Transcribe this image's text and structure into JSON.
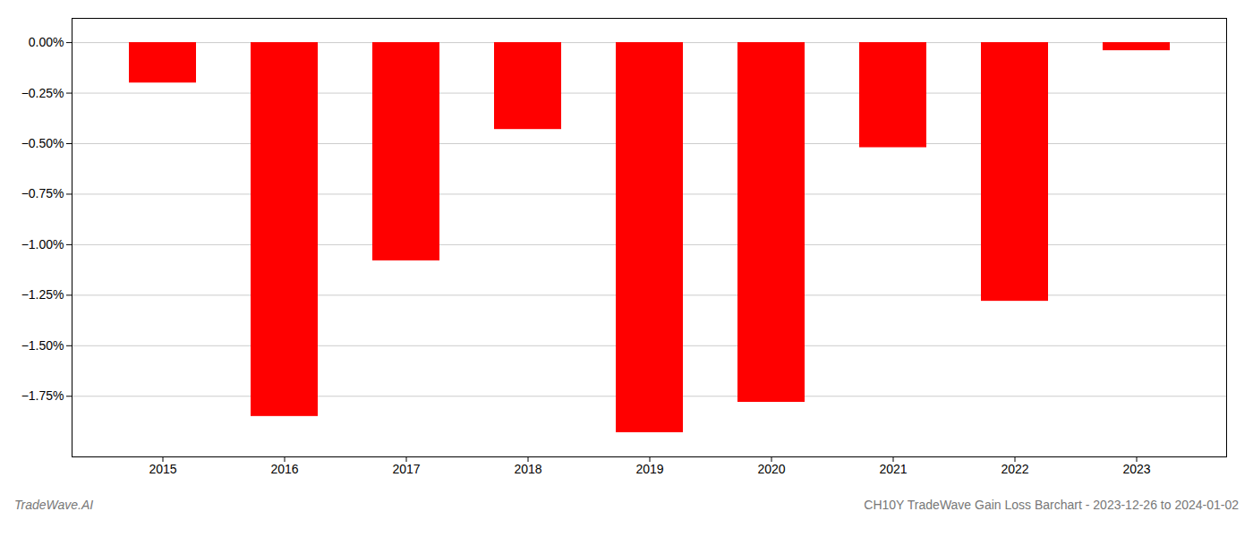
{
  "chart_data": {
    "type": "bar",
    "title": "CH10Y TradeWave Gain Loss Barchart - 2023-12-26 to 2024-01-02",
    "annotations": [
      "TradeWave.AI"
    ],
    "categories": [
      "2015",
      "2016",
      "2017",
      "2018",
      "2019",
      "2020",
      "2021",
      "2022",
      "2023"
    ],
    "values": [
      -0.2,
      -1.85,
      -1.08,
      -0.43,
      -1.93,
      -1.78,
      -0.52,
      -1.28,
      -0.04
    ],
    "color": "#ff0000",
    "ylim": [
      -2.05,
      0.12
    ],
    "yticks": [
      {
        "value": 0.0,
        "label": "0.00%"
      },
      {
        "value": -0.25,
        "label": "−0.25%"
      },
      {
        "value": -0.5,
        "label": "−0.50%"
      },
      {
        "value": -0.75,
        "label": "−0.75%"
      },
      {
        "value": -1.0,
        "label": "−1.00%"
      },
      {
        "value": -1.25,
        "label": "−1.25%"
      },
      {
        "value": -1.5,
        "label": "−1.50%"
      },
      {
        "value": -1.75,
        "label": "−1.75%"
      }
    ],
    "grid": true
  }
}
